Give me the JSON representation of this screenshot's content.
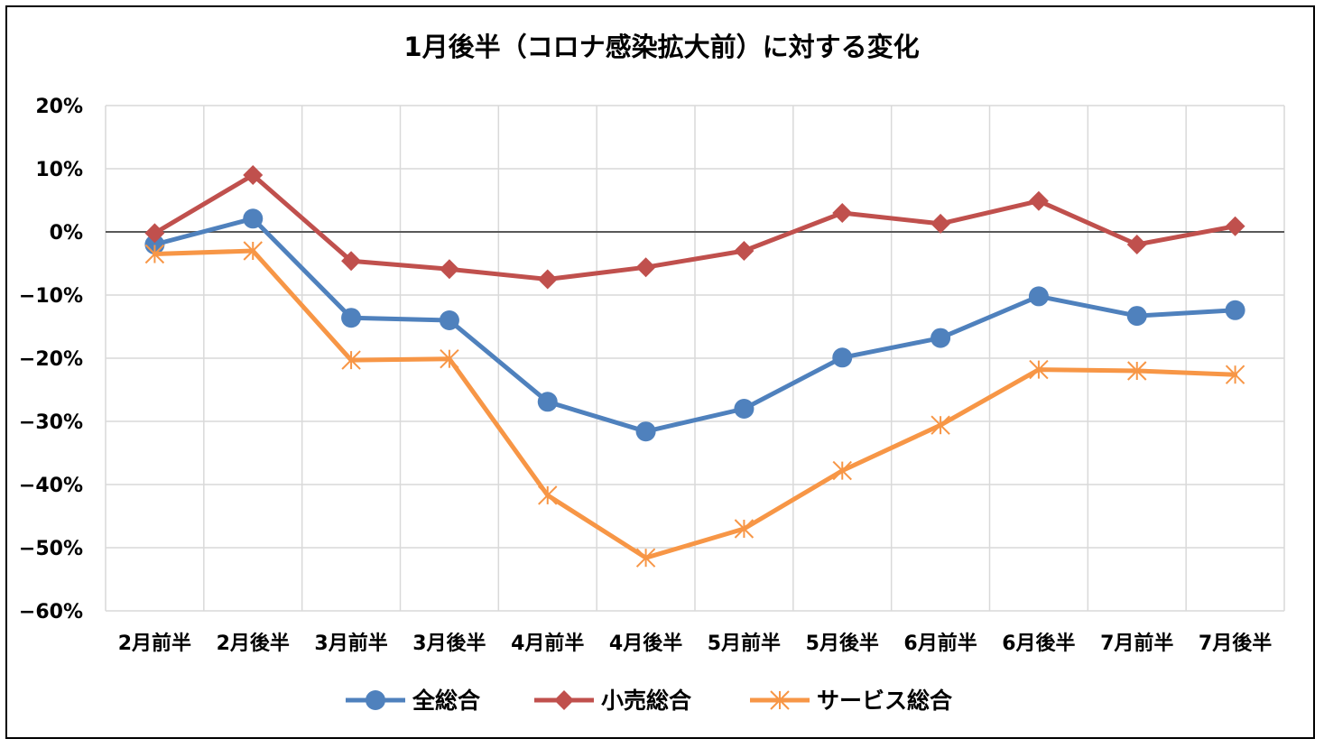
{
  "chart_data": {
    "type": "line",
    "title": "1月後半（コロナ感染拡大前）に対する変化",
    "categories": [
      "2月前半",
      "2月後半",
      "3月前半",
      "3月後半",
      "4月前半",
      "4月後半",
      "5月前半",
      "5月後半",
      "6月前半",
      "6月後半",
      "7月前半",
      "7月後半"
    ],
    "ylim": [
      -60,
      20
    ],
    "yticks": [
      20,
      10,
      0,
      -10,
      -20,
      -30,
      -40,
      -50,
      -60
    ],
    "ytick_labels": [
      "20%",
      "10%",
      "0%",
      "−10%",
      "−20%",
      "−30%",
      "−40%",
      "−50%",
      "−60%"
    ],
    "grid": true,
    "legend_position": "bottom",
    "series": [
      {
        "name": "全総合",
        "color": "#4f81bd",
        "marker": "circle",
        "values": [
          -2.0,
          2.1,
          -13.6,
          -14.0,
          -26.9,
          -31.6,
          -28.0,
          -19.9,
          -16.8,
          -10.2,
          -13.3,
          -12.4
        ]
      },
      {
        "name": "小売総合",
        "color": "#c0504d",
        "marker": "diamond",
        "values": [
          -0.2,
          9.0,
          -4.6,
          -5.9,
          -7.5,
          -5.6,
          -3.0,
          3.0,
          1.3,
          4.9,
          -2.0,
          0.9
        ]
      },
      {
        "name": "サービス総合",
        "color": "#f79646",
        "marker": "star",
        "values": [
          -3.5,
          -3.0,
          -20.3,
          -20.1,
          -41.7,
          -51.6,
          -47.0,
          -37.8,
          -30.6,
          -21.8,
          -22.0,
          -22.6
        ]
      }
    ]
  }
}
